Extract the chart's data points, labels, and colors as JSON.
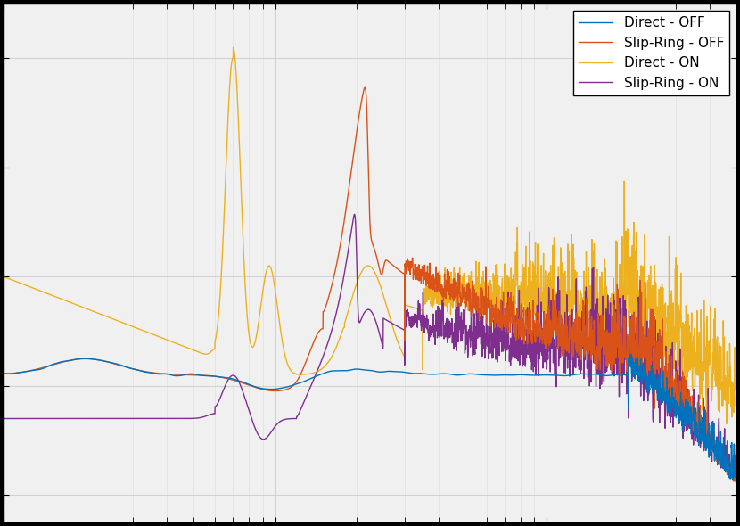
{
  "title": "",
  "xlabel": "",
  "ylabel": "",
  "colors": {
    "direct_off": "#0072BD",
    "slipring_off": "#D95319",
    "direct_on": "#EDB120",
    "slipring_on": "#7E2F8E"
  },
  "legend_labels": [
    "Direct - OFF",
    "Slip-Ring - OFF",
    "Direct - ON",
    "Slip-Ring - ON"
  ],
  "xlim_log": [
    0,
    2.699
  ],
  "ylim": [
    -0.0005,
    0.009
  ],
  "background_color": "#f0f0f0",
  "grid_color": "#ffffff",
  "linewidth": 1.0
}
